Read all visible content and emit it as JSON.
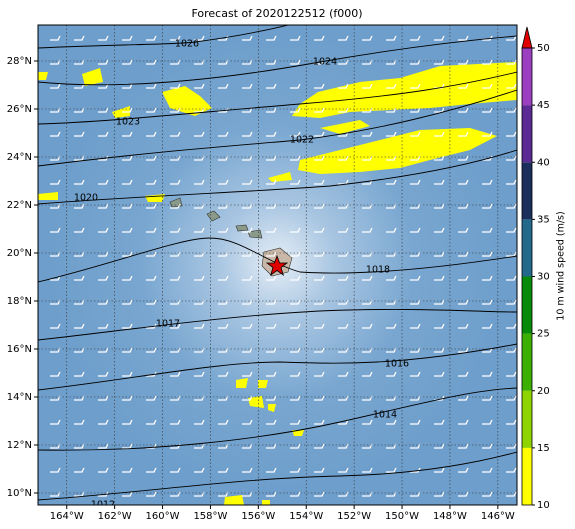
{
  "title": "Forecast of 2020122512 (f000)",
  "map": {
    "xlim": [
      -165.2,
      -145.2
    ],
    "ylim": [
      9.5,
      29.5
    ],
    "grid": true,
    "xticks": [
      {
        "value": -164,
        "label": "164°W"
      },
      {
        "value": -162,
        "label": "162°W"
      },
      {
        "value": -160,
        "label": "160°W"
      },
      {
        "value": -158,
        "label": "158°W"
      },
      {
        "value": -156,
        "label": "156°W"
      },
      {
        "value": -154,
        "label": "154°W"
      },
      {
        "value": -152,
        "label": "152°W"
      },
      {
        "value": -150,
        "label": "150°W"
      },
      {
        "value": -148,
        "label": "148°W"
      },
      {
        "value": -146,
        "label": "146°W"
      }
    ],
    "yticks": [
      {
        "value": 10,
        "label": "10°N"
      },
      {
        "value": 12,
        "label": "12°N"
      },
      {
        "value": 14,
        "label": "14°N"
      },
      {
        "value": 16,
        "label": "16°N"
      },
      {
        "value": 18,
        "label": "18°N"
      },
      {
        "value": 20,
        "label": "20°N"
      },
      {
        "value": 22,
        "label": "22°N"
      },
      {
        "value": 24,
        "label": "24°N"
      },
      {
        "value": 26,
        "label": "26°N"
      },
      {
        "value": 28,
        "label": "28°N"
      }
    ],
    "isobars": [
      1026,
      1024,
      1023,
      1022,
      1020,
      1018,
      1017,
      1016,
      1014,
      1012
    ]
  },
  "colorbar": {
    "label": "10 m wind speed (m/s)",
    "lim": [
      10,
      50
    ],
    "ticks": [
      10,
      15,
      20,
      25,
      30,
      35,
      40,
      45,
      50
    ],
    "colors": [
      "#ffff00",
      "#8fd400",
      "#3cb000",
      "#078a07",
      "#22698c",
      "#1c2f5c",
      "#5b2a94",
      "#9b3fc0"
    ],
    "extend_color": "#e00000"
  }
}
